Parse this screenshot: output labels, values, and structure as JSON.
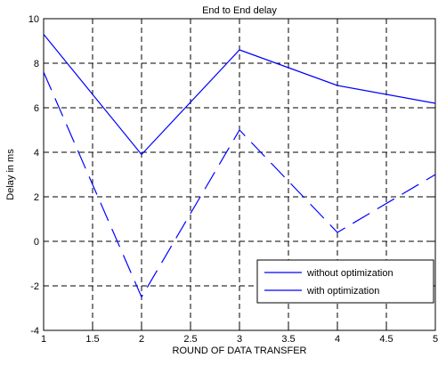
{
  "chart_data": {
    "type": "line",
    "title": "End to End delay",
    "xlabel": "ROUND OF DATA TRANSFER",
    "ylabel": "Delay in ms",
    "xlim": [
      1,
      5
    ],
    "ylim": [
      -4,
      10
    ],
    "xticks": [
      1,
      1.5,
      2,
      2.5,
      3,
      3.5,
      4,
      4.5,
      5
    ],
    "xtick_labels": [
      "1",
      "1.5",
      "2",
      "2.5",
      "3",
      "3.5",
      "4",
      "4.5",
      "5"
    ],
    "yticks": [
      -4,
      -2,
      0,
      2,
      4,
      6,
      8,
      10
    ],
    "ytick_labels": [
      "-4",
      "-2",
      "0",
      "2",
      "4",
      "6",
      "8",
      "10"
    ],
    "grid": true,
    "legend_position": "bottom-right",
    "series": [
      {
        "name": "without optimization",
        "color": "#0000ff",
        "line_style": "solid",
        "x": [
          1,
          2,
          3,
          4,
          5
        ],
        "y": [
          9.3,
          3.9,
          8.6,
          7.0,
          6.2
        ]
      },
      {
        "name": "with optimization",
        "color": "#0000ff",
        "line_style": "dashed",
        "x": [
          1,
          2,
          3,
          4,
          5
        ],
        "y": [
          7.6,
          -2.5,
          5.0,
          0.4,
          3.0
        ]
      }
    ]
  }
}
